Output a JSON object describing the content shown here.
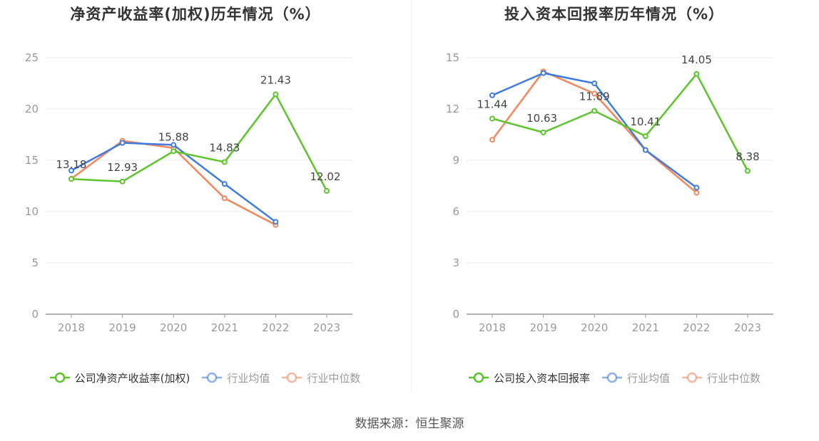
{
  "chart_data": [
    {
      "type": "line",
      "title": "净资产收益率(加权)历年情况（%）",
      "categories": [
        "2018",
        "2019",
        "2020",
        "2021",
        "2022",
        "2023"
      ],
      "yticks": [
        "0",
        "5",
        "10",
        "15",
        "20",
        "25"
      ],
      "ylim": [
        0,
        25
      ],
      "series": [
        {
          "name": "公司净资产收益率(加权)",
          "color": "#5bc42b",
          "values": [
            13.18,
            12.93,
            15.88,
            14.83,
            21.43,
            12.02
          ],
          "labels": [
            "13.18",
            "12.93",
            "15.88",
            "14.83",
            "21.43",
            "12.02"
          ]
        },
        {
          "name": "行业均值",
          "color": "#3e7be0",
          "values": [
            14.0,
            16.7,
            16.5,
            12.7,
            9.0,
            null
          ]
        },
        {
          "name": "行业中位数",
          "color": "#f2875e",
          "values": [
            13.2,
            16.9,
            16.2,
            11.3,
            8.7,
            null
          ]
        }
      ]
    },
    {
      "type": "line",
      "title": "投入资本回报率历年情况（%）",
      "categories": [
        "2018",
        "2019",
        "2020",
        "2021",
        "2022",
        "2023"
      ],
      "yticks": [
        "0",
        "3",
        "6",
        "9",
        "12",
        "15"
      ],
      "ylim": [
        0,
        15
      ],
      "series": [
        {
          "name": "公司投入资本回报率",
          "color": "#5bc42b",
          "values": [
            11.44,
            10.63,
            11.89,
            10.41,
            14.05,
            8.38
          ],
          "labels": [
            "11.44",
            "10.63",
            "11.89",
            "10.41",
            "14.05",
            "8.38"
          ]
        },
        {
          "name": "行业均值",
          "color": "#3e7be0",
          "values": [
            12.8,
            14.1,
            13.5,
            9.6,
            7.4,
            null
          ]
        },
        {
          "name": "行业中位数",
          "color": "#f2875e",
          "values": [
            10.2,
            14.2,
            12.9,
            9.6,
            7.1,
            null
          ]
        }
      ]
    }
  ],
  "source": "数据来源：恒生聚源"
}
